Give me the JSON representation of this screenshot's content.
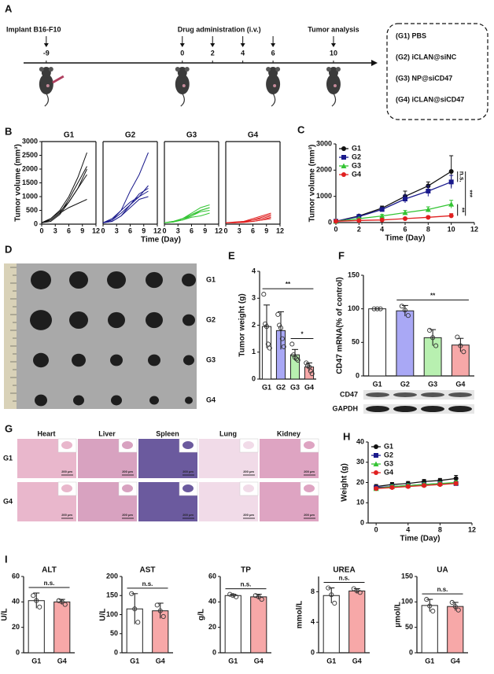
{
  "panel_labels": [
    "A",
    "B",
    "C",
    "D",
    "E",
    "F",
    "G",
    "H",
    "I"
  ],
  "timeline": {
    "xlim": [
      -10.5,
      12.5
    ],
    "ticks": [
      -9,
      0,
      2,
      4,
      6,
      10
    ],
    "events": [
      {
        "label": "Implant B16-F10",
        "days": [
          -9
        ]
      },
      {
        "label": "Drug administration (i.v.)",
        "days": [
          0,
          2,
          4,
          6
        ]
      },
      {
        "label": "Tumor analysis",
        "days": [
          10
        ]
      }
    ]
  },
  "groups": [
    "(G1) PBS",
    "(G2) iCLAN@siNC",
    "(G3) NP@siCD47",
    "(G4) iCLAN@siCD47"
  ],
  "tumor_photo": {
    "rows": [
      "G1",
      "G2",
      "G3",
      "G4"
    ]
  },
  "blot": {
    "labels": [
      "CD47",
      "GAPDH"
    ]
  },
  "histology": {
    "columns": [
      "Heart",
      "Liver",
      "Spleen",
      "Lung",
      "Kidney"
    ],
    "rows": [
      "G1",
      "G4"
    ],
    "scale_bar": "200 μm"
  },
  "chart_data": [
    {
      "type": "line",
      "title": "G1",
      "ylabel": "Tumor volume (mm³)",
      "xlabel": "Time (Day)",
      "frame": true,
      "color": "#111111",
      "x": [
        0,
        2,
        4,
        6,
        8,
        10
      ],
      "xlim": [
        0,
        12
      ],
      "xticks": [
        0,
        3,
        6,
        9,
        12
      ],
      "ylim": [
        0,
        3000
      ],
      "yticks": [
        0,
        500,
        1000,
        1500,
        2000,
        2500,
        3000
      ],
      "series": [
        {
          "values": [
            50,
            200,
            500,
            1000,
            1700,
            2600
          ]
        },
        {
          "values": [
            50,
            150,
            400,
            900,
            1500,
            2100
          ]
        },
        {
          "values": [
            50,
            200,
            450,
            800,
            1300,
            2000
          ]
        },
        {
          "values": [
            50,
            100,
            350,
            800,
            1300,
            1800
          ]
        },
        {
          "values": [
            50,
            150,
            400,
            600,
            750,
            900
          ]
        }
      ]
    },
    {
      "type": "line",
      "title": "G2",
      "frame": true,
      "color": "#1a1a8c",
      "x": [
        0,
        2,
        4,
        6,
        8,
        10
      ],
      "xlim": [
        0,
        12
      ],
      "xticks": [
        0,
        3,
        6,
        9,
        12
      ],
      "ylim": [
        0,
        3000
      ],
      "series": [
        {
          "values": [
            50,
            150,
            500,
            1200,
            1800,
            2600
          ]
        },
        {
          "values": [
            50,
            150,
            400,
            700,
            1000,
            1400
          ]
        },
        {
          "values": [
            50,
            100,
            300,
            700,
            1100,
            1300
          ]
        },
        {
          "values": [
            50,
            200,
            500,
            800,
            1000,
            1200
          ]
        },
        {
          "values": [
            50,
            100,
            300,
            600,
            900,
            1000
          ]
        }
      ]
    },
    {
      "type": "line",
      "title": "G3",
      "frame": true,
      "color": "#33c433",
      "x": [
        0,
        2,
        4,
        6,
        8,
        10
      ],
      "xlim": [
        0,
        12
      ],
      "xticks": [
        0,
        3,
        6,
        9,
        12
      ],
      "ylim": [
        0,
        3000
      ],
      "series": [
        {
          "values": [
            50,
            100,
            200,
            400,
            600,
            700
          ]
        },
        {
          "values": [
            50,
            100,
            200,
            300,
            500,
            600
          ]
        },
        {
          "values": [
            50,
            80,
            200,
            350,
            500,
            600
          ]
        },
        {
          "values": [
            50,
            100,
            150,
            300,
            450,
            500
          ]
        },
        {
          "values": [
            50,
            80,
            150,
            250,
            300,
            400
          ]
        }
      ]
    },
    {
      "type": "line",
      "title": "G4",
      "frame": true,
      "color": "#e02020",
      "x": [
        0,
        2,
        4,
        6,
        8,
        10
      ],
      "xlim": [
        0,
        12
      ],
      "xticks": [
        0,
        3,
        6,
        9,
        12
      ],
      "ylim": [
        0,
        3000
      ],
      "series": [
        {
          "values": [
            50,
            80,
            100,
            200,
            300,
            400
          ]
        },
        {
          "values": [
            50,
            60,
            100,
            150,
            250,
            350
          ]
        },
        {
          "values": [
            50,
            60,
            80,
            150,
            200,
            300
          ]
        },
        {
          "values": [
            50,
            50,
            80,
            100,
            150,
            250
          ]
        },
        {
          "values": [
            50,
            50,
            60,
            100,
            150,
            200
          ]
        }
      ]
    },
    {
      "type": "line",
      "ylabel": "Tumor volume (mm³)",
      "xlabel": "Time (Day)",
      "legend": "upper left",
      "x": [
        0,
        2,
        4,
        6,
        8,
        10
      ],
      "xlim": [
        0,
        12
      ],
      "xticks": [
        0,
        2,
        4,
        6,
        8,
        10,
        12
      ],
      "ylim": [
        0,
        3000
      ],
      "yticks": [
        0,
        1000,
        2000,
        3000
      ],
      "annotations": [
        "n.s.",
        "**",
        "***"
      ],
      "series": [
        {
          "name": "G1",
          "color": "#111111",
          "marker": "circle",
          "values": [
            50,
            250,
            550,
            1000,
            1400,
            1950
          ],
          "errors": [
            10,
            40,
            80,
            200,
            150,
            600
          ]
        },
        {
          "name": "G2",
          "color": "#1a1a8c",
          "marker": "square",
          "values": [
            50,
            230,
            500,
            900,
            1200,
            1550
          ],
          "errors": [
            10,
            40,
            60,
            150,
            200,
            250
          ]
        },
        {
          "name": "G3",
          "color": "#33c433",
          "marker": "triangle",
          "values": [
            50,
            150,
            250,
            380,
            500,
            700
          ],
          "errors": [
            10,
            30,
            60,
            80,
            100,
            150
          ]
        },
        {
          "name": "G4",
          "color": "#e02020",
          "marker": "circle",
          "values": [
            50,
            80,
            100,
            150,
            200,
            260
          ],
          "errors": [
            10,
            20,
            30,
            40,
            50,
            80
          ]
        }
      ]
    },
    {
      "type": "bar",
      "ylabel": "Tumor weight (g)",
      "categories": [
        "G1",
        "G2",
        "G3",
        "G4"
      ],
      "values": [
        1.95,
        1.8,
        0.9,
        0.45
      ],
      "errors": [
        0.8,
        0.7,
        0.2,
        0.15
      ],
      "points": [
        [
          3.15,
          2.05,
          1.95,
          1.3,
          1.15
        ],
        [
          2.4,
          2.0,
          1.9,
          1.5,
          1.2
        ],
        [
          1.3,
          0.9,
          0.8,
          0.75,
          0.7
        ],
        [
          0.6,
          0.5,
          0.45,
          0.3,
          0.2
        ]
      ],
      "colors": [
        "#ffffff",
        "#a9a8f5",
        "#b8f0b0",
        "#f7a8a8"
      ],
      "ylim": [
        0,
        4
      ],
      "yticks": [
        0,
        1,
        2,
        3,
        4
      ],
      "annotations": [
        "**",
        "*"
      ]
    },
    {
      "type": "bar",
      "ylabel": "CD47 mRNA(% of control)",
      "categories": [
        "G1",
        "G2",
        "G3",
        "G4"
      ],
      "values": [
        100,
        97,
        57,
        46
      ],
      "errors": [
        0,
        8,
        12,
        10
      ],
      "points": [
        [
          100,
          100,
          100
        ],
        [
          104,
          98,
          90
        ],
        [
          68,
          57,
          45
        ],
        [
          58,
          45,
          36
        ]
      ],
      "colors": [
        "#ffffff",
        "#a9a8f5",
        "#b8f0b0",
        "#f7a8a8"
      ],
      "ylim": [
        0,
        150
      ],
      "yticks": [
        0,
        50,
        100,
        150
      ],
      "annotations": [
        "**"
      ]
    },
    {
      "type": "line",
      "ylabel": "Weight (g)",
      "xlabel": "Time (Day)",
      "legend": "upper left",
      "x": [
        0,
        2,
        4,
        6,
        8,
        10
      ],
      "xlim": [
        -1,
        12
      ],
      "xticks": [
        0,
        4,
        8,
        12
      ],
      "ylim": [
        0,
        40
      ],
      "yticks": [
        0,
        10,
        20,
        30,
        40
      ],
      "series": [
        {
          "name": "G1",
          "color": "#111111",
          "marker": "circle",
          "values": [
            18,
            19,
            19.5,
            20.5,
            21,
            22
          ],
          "errors": [
            1,
            1,
            1,
            1,
            1,
            1.5
          ]
        },
        {
          "name": "G2",
          "color": "#1a1a8c",
          "marker": "square",
          "values": [
            17.5,
            18,
            18.5,
            19,
            19.5,
            19.5
          ],
          "errors": [
            0.8,
            0.8,
            0.8,
            0.8,
            0.8,
            0.8
          ]
        },
        {
          "name": "G3",
          "color": "#33c433",
          "marker": "triangle",
          "values": [
            17,
            18,
            18.5,
            19,
            19.5,
            20
          ],
          "errors": [
            0.8,
            0.8,
            0.8,
            0.8,
            0.8,
            0.8
          ]
        },
        {
          "name": "G4",
          "color": "#e02020",
          "marker": "circle",
          "values": [
            17,
            17.5,
            18,
            18.5,
            19,
            19.5
          ],
          "errors": [
            0.8,
            0.8,
            0.8,
            0.8,
            0.8,
            0.8
          ]
        }
      ]
    },
    {
      "type": "bar",
      "title": "ALT",
      "ylabel": "U/L",
      "categories": [
        "G1",
        "G4"
      ],
      "values": [
        41,
        40
      ],
      "errors": [
        6,
        2
      ],
      "points": [
        [
          45,
          41,
          36
        ],
        [
          41,
          40,
          38
        ]
      ],
      "colors": [
        "#ffffff",
        "#f7a8a8"
      ],
      "ylim": [
        0,
        60
      ],
      "yticks": [
        0,
        20,
        40,
        60
      ],
      "annotations": [
        "n.s."
      ]
    },
    {
      "type": "bar",
      "title": "AST",
      "ylabel": "U/L",
      "categories": [
        "G1",
        "G4"
      ],
      "values": [
        115,
        110
      ],
      "errors": [
        40,
        20
      ],
      "points": [
        [
          155,
          115,
          80
        ],
        [
          125,
          110,
          95
        ]
      ],
      "colors": [
        "#ffffff",
        "#f7a8a8"
      ],
      "ylim": [
        0,
        200
      ],
      "yticks": [
        0,
        50,
        100,
        150,
        200
      ],
      "annotations": [
        "n.s."
      ]
    },
    {
      "type": "bar",
      "title": "TP",
      "ylabel": "g/L",
      "categories": [
        "G1",
        "G4"
      ],
      "values": [
        45,
        44
      ],
      "errors": [
        1,
        2
      ],
      "points": [
        [
          46,
          45,
          44
        ],
        [
          45,
          44,
          42
        ]
      ],
      "colors": [
        "#ffffff",
        "#f7a8a8"
      ],
      "ylim": [
        0,
        60
      ],
      "yticks": [
        0,
        20,
        40,
        60
      ],
      "annotations": [
        "n.s."
      ]
    },
    {
      "type": "bar",
      "title": "UREA",
      "ylabel": "mmol/L",
      "categories": [
        "G1",
        "G4"
      ],
      "values": [
        7.5,
        8.1
      ],
      "errors": [
        1,
        0.3
      ],
      "points": [
        [
          8.5,
          7.6,
          6.5
        ],
        [
          8.4,
          8.1,
          7.9
        ]
      ],
      "colors": [
        "#ffffff",
        "#f7a8a8"
      ],
      "ylim": [
        0,
        10
      ],
      "yticks": [
        0,
        4,
        8
      ],
      "annotations": [
        "n.s."
      ]
    },
    {
      "type": "bar",
      "title": "UA",
      "ylabel": "μmol/L",
      "categories": [
        "G1",
        "G4"
      ],
      "values": [
        93,
        91
      ],
      "errors": [
        12,
        8
      ],
      "points": [
        [
          105,
          92,
          82
        ],
        [
          99,
          91,
          84
        ]
      ],
      "colors": [
        "#ffffff",
        "#f7a8a8"
      ],
      "ylim": [
        0,
        150
      ],
      "yticks": [
        0,
        50,
        100,
        150
      ],
      "annotations": [
        "n.s."
      ]
    }
  ]
}
